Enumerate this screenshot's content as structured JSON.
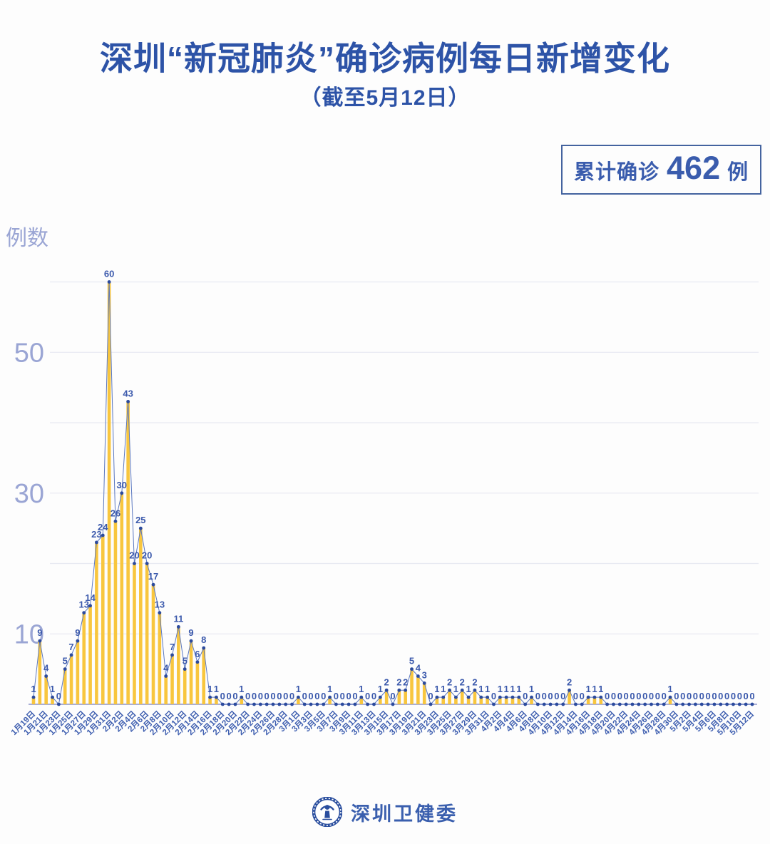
{
  "title": "深圳“新冠肺炎”确诊病例每日新增变化",
  "subtitle": "（截至5月12日）",
  "badge": {
    "prefix": "累计确诊",
    "value": "462",
    "suffix": "例"
  },
  "footer": {
    "org": "深圳卫健委",
    "logo_icon": "shenzhen-health-commission-emblem"
  },
  "chart_data": {
    "type": "bar",
    "title": "深圳“新冠肺炎”确诊病例每日新增变化",
    "subtitle": "（截至5月12日）",
    "xlabel": "",
    "ylabel": "例数",
    "ylim": [
      0,
      62
    ],
    "ytick_labels": [
      10,
      30,
      50
    ],
    "gridline_values": [
      10,
      20,
      30,
      40,
      50,
      60
    ],
    "grid": "horizontal-only",
    "legend": "none",
    "xtick_every": 2,
    "cumulative_total": 462,
    "categories": [
      "1月19日",
      "1月20日",
      "1月21日",
      "1月22日",
      "1月23日",
      "1月24日",
      "1月25日",
      "1月26日",
      "1月27日",
      "1月28日",
      "1月29日",
      "1月30日",
      "1月31日",
      "2月1日",
      "2月2日",
      "2月3日",
      "2月4日",
      "2月5日",
      "2月6日",
      "2月7日",
      "2月8日",
      "2月9日",
      "2月10日",
      "2月11日",
      "2月12日",
      "2月13日",
      "2月14日",
      "2月15日",
      "2月16日",
      "2月17日",
      "2月18日",
      "2月19日",
      "2月20日",
      "2月21日",
      "2月22日",
      "2月23日",
      "2月24日",
      "2月25日",
      "2月26日",
      "2月27日",
      "2月28日",
      "2月29日",
      "3月1日",
      "3月2日",
      "3月3日",
      "3月4日",
      "3月5日",
      "3月6日",
      "3月7日",
      "3月8日",
      "3月9日",
      "3月10日",
      "3月11日",
      "3月12日",
      "3月13日",
      "3月14日",
      "3月15日",
      "3月16日",
      "3月17日",
      "3月18日",
      "3月19日",
      "3月20日",
      "3月21日",
      "3月22日",
      "3月23日",
      "3月24日",
      "3月25日",
      "3月26日",
      "3月27日",
      "3月28日",
      "3月29日",
      "3月30日",
      "3月31日",
      "4月1日",
      "4月2日",
      "4月3日",
      "4月4日",
      "4月5日",
      "4月6日",
      "4月7日",
      "4月8日",
      "4月9日",
      "4月10日",
      "4月11日",
      "4月12日",
      "4月13日",
      "4月14日",
      "4月15日",
      "4月16日",
      "4月17日",
      "4月18日",
      "4月19日",
      "4月20日",
      "4月21日",
      "4月22日",
      "4月23日",
      "4月24日",
      "4月25日",
      "4月26日",
      "4月27日",
      "4月28日",
      "4月29日",
      "4月30日",
      "5月1日",
      "5月2日",
      "5月3日",
      "5月4日",
      "5月5日",
      "5月6日",
      "5月7日",
      "5月8日",
      "5月9日",
      "5月10日",
      "5月11日",
      "5月12日"
    ],
    "values": [
      1,
      9,
      4,
      1,
      0,
      5,
      7,
      9,
      13,
      14,
      23,
      24,
      60,
      26,
      30,
      43,
      20,
      25,
      20,
      17,
      13,
      4,
      7,
      11,
      5,
      9,
      6,
      8,
      1,
      1,
      0,
      0,
      0,
      1,
      0,
      0,
      0,
      0,
      0,
      0,
      0,
      0,
      1,
      0,
      0,
      0,
      0,
      1,
      0,
      0,
      0,
      0,
      1,
      0,
      0,
      1,
      2,
      0,
      2,
      2,
      5,
      4,
      3,
      0,
      1,
      1,
      2,
      1,
      2,
      1,
      2,
      1,
      1,
      0,
      1,
      1,
      1,
      1,
      0,
      1,
      0,
      0,
      0,
      0,
      0,
      2,
      0,
      0,
      1,
      1,
      1,
      0,
      0,
      0,
      0,
      0,
      0,
      0,
      0,
      0,
      0,
      1,
      0,
      0,
      0,
      0,
      0,
      0,
      0,
      0,
      0,
      0,
      0,
      0,
      0
    ],
    "colors": {
      "bar": "#F8C63E",
      "line": "#5B78C0",
      "point": "#2B4A9D",
      "value_label": "#3B59AC",
      "axis_text": "#9AA5D4",
      "date_text": "#3F5FB0",
      "grid": "#E8EAF2",
      "baseline": "#A9AED6",
      "title": "#2D53A7"
    }
  }
}
